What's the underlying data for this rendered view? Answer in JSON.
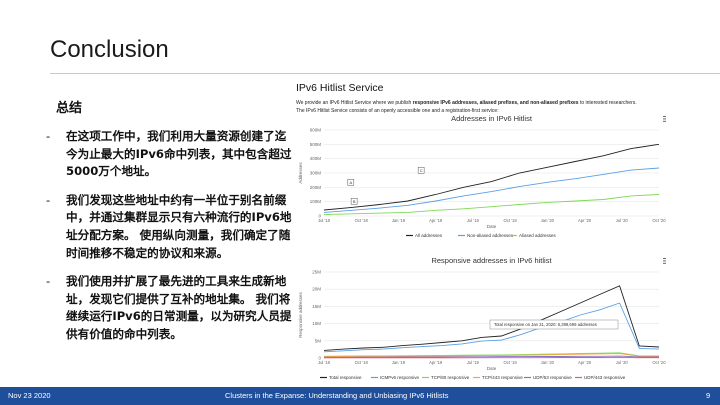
{
  "slide": {
    "title": "Conclusion",
    "subhead": "总结",
    "bullets": [
      "在这项工作中，我们利用大量资源创建了迄今为止最大的IPv6命中列表，其中包含超过5000万个地址。",
      "我们发现这些地址中约有一半位于别名前缀中，并通过集群显示只有六种流行的IPv6地址分配方案。 使用纵向测量，我们确定了随时间推移不稳定的协议和来源。",
      "我们使用并扩展了最先进的工具来生成新地址，发现它们提供了互补的地址集。 我们将继续运行IPv6的日常测量，以为研究人员提供有价值的命中列表。"
    ]
  },
  "service": {
    "title": "IPv6 Hitlist Service",
    "text_pre": "We provide an IPv6 Hitlist Service where we publish ",
    "text_bold": "responsive IPv6 addresses, aliased prefixes, and non-aliased prefixes",
    "text_post": " to interested researchers.",
    "text_line2": "The IPv6 Hitlist Service consists of an openly accessible one and a registration-first service:"
  },
  "footer": {
    "date": "Nov 23 2020",
    "center": "Clusters in the Expanse: Understanding and Unbiasing IPv6 Hitlists",
    "page": "9"
  },
  "colors": {
    "footer_bg": "#1f4e9a"
  },
  "menu_icon": "hamburger-menu-icon",
  "chart_data": [
    {
      "type": "line",
      "title": "Addresses in IPv6 Hitlist",
      "ylabel": "Addresses",
      "xlabel": "Date",
      "x_ticks": [
        "Jul '18",
        "Oct '18",
        "Jan '19",
        "Apr '19",
        "Jul '19",
        "Oct '19",
        "Jan '20",
        "Apr '20",
        "Jul '20",
        "Oct '20"
      ],
      "y_ticks": [
        "0",
        "100M",
        "200M",
        "300M",
        "400M",
        "500M",
        "600M"
      ],
      "ylim": [
        0,
        600
      ],
      "annotations": [
        "A",
        "B",
        "C"
      ],
      "legend": [
        "All addresses",
        "Non-aliased addresses",
        "Aliased addresses"
      ],
      "series": [
        {
          "name": "All addresses",
          "color": "#222222",
          "values": [
            42,
            60,
            80,
            105,
            150,
            200,
            240,
            300,
            340,
            380,
            420,
            470,
            500
          ]
        },
        {
          "name": "Non-aliased addresses",
          "color": "#5aa0e6",
          "values": [
            25,
            40,
            55,
            75,
            105,
            140,
            170,
            205,
            235,
            260,
            290,
            320,
            335
          ]
        },
        {
          "name": "Aliased addresses",
          "color": "#7ed957",
          "values": [
            10,
            15,
            20,
            25,
            40,
            50,
            65,
            80,
            95,
            105,
            115,
            140,
            150
          ]
        }
      ]
    },
    {
      "type": "line",
      "title": "Responsive addresses in IPv6 hitlist",
      "ylabel": "Responsive addresses",
      "xlabel": "Date",
      "x_ticks": [
        "Jul '18",
        "Oct '18",
        "Jan '19",
        "Apr '19",
        "Jul '19",
        "Oct '19",
        "Jan '20",
        "Apr '20",
        "Jul '20",
        "Oct '20"
      ],
      "y_ticks": [
        "0",
        "5M",
        "10M",
        "15M",
        "20M",
        "25M"
      ],
      "ylim": [
        0,
        25
      ],
      "tooltip": "Total responsive on Jan 31, 2020: 6,399,699 addresses",
      "legend": [
        "Total responsive",
        "ICMPv6 responsive",
        "TCP/80 responsive",
        "TCP/443 responsive",
        "UDP/53 responsive",
        "UDP/443 responsive"
      ],
      "series": [
        {
          "name": "Total responsive",
          "color": "#222222",
          "values": [
            2.2,
            2.6,
            2.9,
            3.1,
            3.6,
            4.0,
            4.5,
            5.0,
            6.0,
            6.4,
            8.5,
            11.0,
            13.5,
            16.0,
            18.5,
            21.0,
            3.5,
            3.2
          ]
        },
        {
          "name": "ICMPv6 responsive",
          "color": "#5aa0e6",
          "values": [
            1.8,
            2.1,
            2.4,
            2.6,
            3.0,
            3.3,
            3.6,
            4.1,
            4.9,
            5.2,
            6.8,
            8.8,
            10.5,
            12.5,
            14.0,
            16.0,
            2.8,
            2.6
          ]
        },
        {
          "name": "TCP/80 responsive",
          "color": "#7ed957",
          "values": [
            0.5,
            0.55,
            0.6,
            0.6,
            0.65,
            0.7,
            0.75,
            0.8,
            0.85,
            0.9,
            1.0,
            1.1,
            1.2,
            1.3,
            1.4,
            1.5,
            0.6,
            0.6
          ]
        },
        {
          "name": "TCP/443 responsive",
          "color": "#f2a93b",
          "values": [
            0.4,
            0.45,
            0.5,
            0.5,
            0.55,
            0.6,
            0.6,
            0.65,
            0.7,
            0.75,
            0.8,
            0.9,
            1.0,
            1.1,
            1.2,
            1.3,
            0.5,
            0.5
          ]
        },
        {
          "name": "UDP/53 responsive",
          "color": "#8e6cc9",
          "values": [
            0.2,
            0.2,
            0.25,
            0.25,
            0.3,
            0.3,
            0.3,
            0.35,
            0.35,
            0.4,
            0.4,
            0.45,
            0.45,
            0.5,
            0.5,
            0.55,
            0.3,
            0.3
          ]
        },
        {
          "name": "UDP/443 responsive",
          "color": "#e05c7a",
          "values": [
            0.05,
            0.05,
            0.05,
            0.05,
            0.05,
            0.05,
            0.05,
            0.05,
            0.1,
            0.1,
            0.1,
            0.1,
            0.15,
            0.15,
            0.15,
            0.2,
            0.1,
            0.1
          ]
        }
      ]
    }
  ]
}
